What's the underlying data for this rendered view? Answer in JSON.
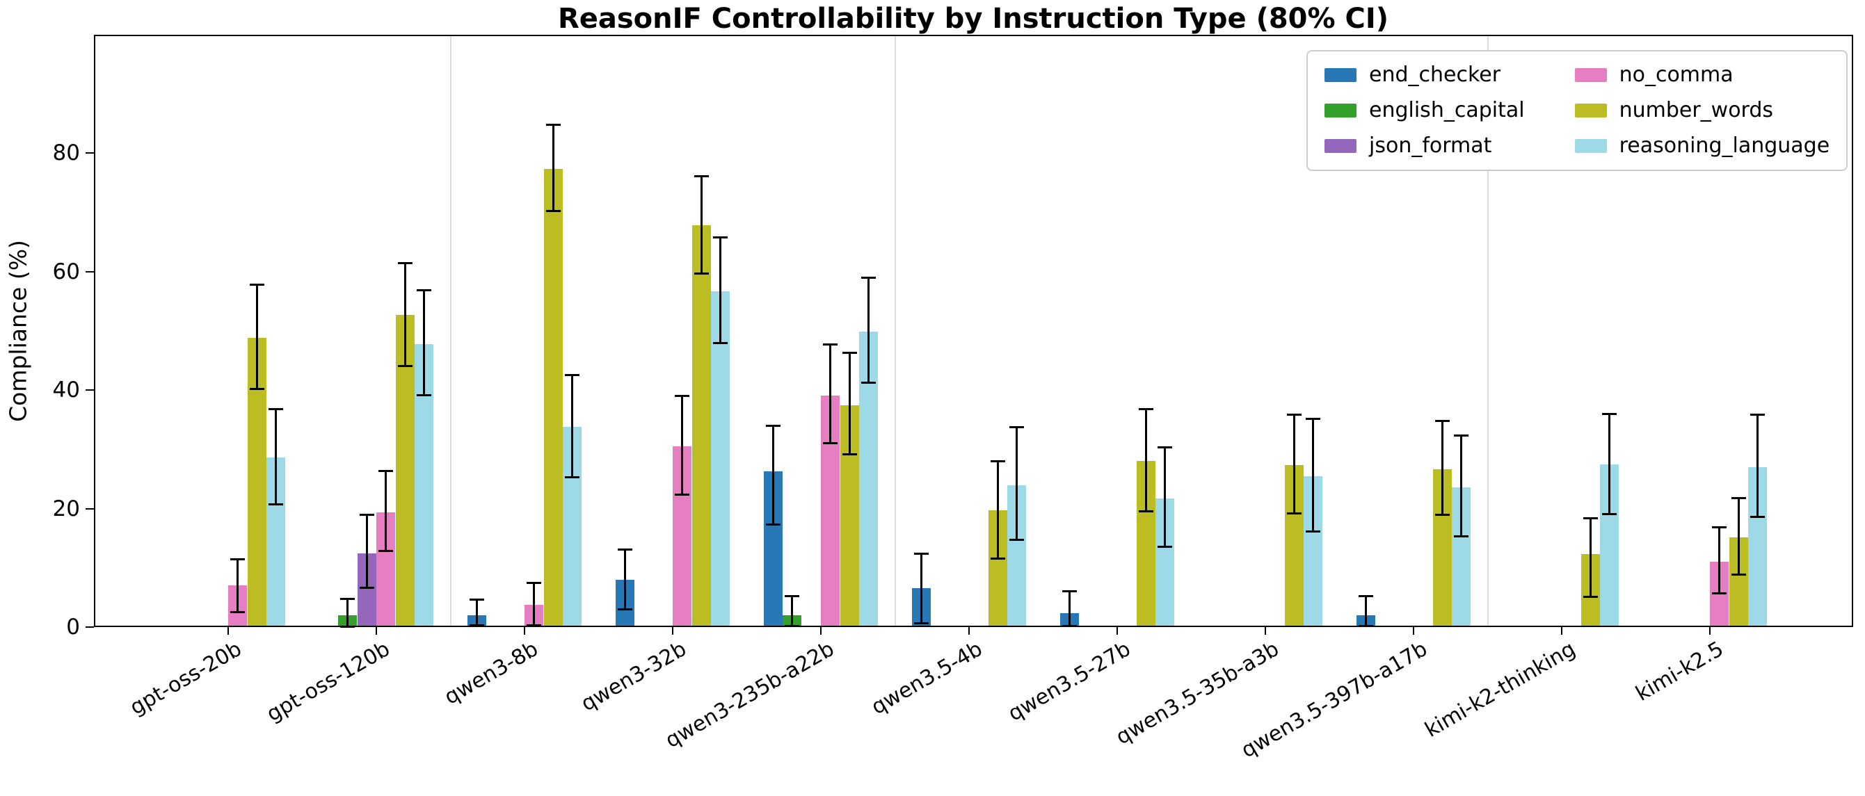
{
  "title": "ReasonIF Controllability by Instruction Type (80% CI)",
  "chart_data": {
    "type": "bar",
    "title": "ReasonIF Controllability by Instruction Type (80% CI)",
    "xlabel": "",
    "ylabel": "Compliance (%)",
    "ylim": [
      0,
      100
    ],
    "yticks": [
      0,
      20,
      40,
      60,
      80
    ],
    "grid": false,
    "error_bars": "80% CI",
    "legend_position": "upper right",
    "legend_columns": 2,
    "categories": [
      "gpt-oss-20b",
      "gpt-oss-120b",
      "qwen3-8b",
      "qwen3-32b",
      "qwen3-235b-a22b",
      "qwen3.5-4b",
      "qwen3.5-27b",
      "qwen3.5-35b-a3b",
      "qwen3.5-397b-a17b",
      "kimi-k2-thinking",
      "kimi-k2.5"
    ],
    "family_separator_positions": [
      1.5,
      4.5,
      8.5
    ],
    "series": [
      {
        "name": "end_checker",
        "color": "#2878b5",
        "values": [
          null,
          null,
          2.0,
          8.0,
          26.3,
          6.6,
          2.4,
          null,
          2.0,
          null,
          null
        ],
        "ci_low": [
          null,
          null,
          0.3,
          3.0,
          17.3,
          0.7,
          0.2,
          null,
          0.2,
          null,
          null
        ],
        "ci_high": [
          null,
          null,
          4.6,
          13.1,
          34.0,
          12.4,
          6.0,
          null,
          5.2,
          null,
          null
        ]
      },
      {
        "name": "english_capital",
        "color": "#33a02c",
        "values": [
          null,
          2.0,
          null,
          null,
          2.0,
          null,
          null,
          null,
          null,
          null,
          null
        ],
        "ci_low": [
          null,
          0.1,
          null,
          null,
          0.2,
          null,
          null,
          null,
          null,
          null,
          null
        ],
        "ci_high": [
          null,
          4.8,
          null,
          null,
          5.2,
          null,
          null,
          null,
          null,
          null,
          null
        ]
      },
      {
        "name": "json_format",
        "color": "#9467bd",
        "values": [
          null,
          12.4,
          null,
          null,
          null,
          null,
          null,
          null,
          null,
          null,
          null
        ],
        "ci_low": [
          null,
          6.6,
          null,
          null,
          null,
          null,
          null,
          null,
          null,
          null,
          null
        ],
        "ci_high": [
          null,
          19.0,
          null,
          null,
          null,
          null,
          null,
          null,
          null,
          null,
          null
        ]
      },
      {
        "name": "no_comma",
        "color": "#e57fc2",
        "values": [
          7.0,
          19.4,
          3.8,
          30.5,
          39.1,
          null,
          null,
          null,
          null,
          null,
          11.0
        ],
        "ci_low": [
          2.5,
          12.8,
          0.3,
          22.4,
          31.0,
          null,
          null,
          null,
          null,
          null,
          5.7
        ],
        "ci_high": [
          11.5,
          26.4,
          7.4,
          39.0,
          47.7,
          null,
          null,
          null,
          null,
          null,
          16.9
        ]
      },
      {
        "name": "number_words",
        "color": "#bcbd22",
        "values": [
          48.8,
          52.7,
          77.4,
          67.8,
          37.5,
          19.7,
          28.0,
          27.4,
          26.7,
          12.3,
          15.2
        ],
        "ci_low": [
          40.2,
          44.1,
          70.3,
          59.7,
          29.2,
          11.6,
          19.6,
          19.2,
          18.9,
          5.1,
          8.9
        ],
        "ci_high": [
          57.8,
          61.5,
          84.8,
          76.1,
          46.3,
          28.0,
          36.8,
          35.9,
          34.8,
          18.4,
          21.8
        ]
      },
      {
        "name": "reasoning_language",
        "color": "#9ed9e8",
        "values": [
          28.6,
          47.8,
          33.8,
          56.7,
          49.9,
          23.9,
          21.7,
          25.5,
          23.6,
          27.5,
          27.0
        ],
        "ci_low": [
          20.7,
          39.2,
          25.3,
          47.9,
          41.2,
          14.7,
          13.5,
          16.1,
          15.3,
          19.1,
          18.6
        ],
        "ci_high": [
          36.8,
          56.9,
          42.6,
          65.8,
          59.0,
          33.8,
          30.3,
          35.1,
          32.3,
          36.0,
          35.9
        ]
      }
    ]
  }
}
